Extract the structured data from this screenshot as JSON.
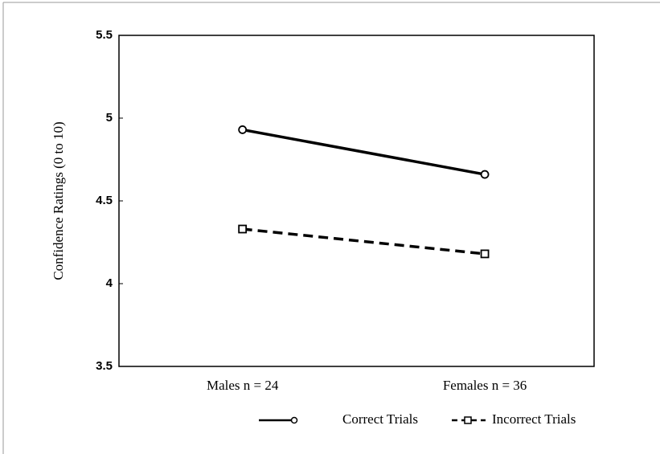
{
  "chart_data": {
    "type": "line",
    "ylabel": "Confidence Ratings (0 to 10)",
    "categories": [
      "Males n = 24",
      "Females n = 36"
    ],
    "series": [
      {
        "name": "Correct Trials",
        "color": "#000000",
        "values": [
          4.93,
          4.66
        ],
        "dash": false,
        "marker": "circle"
      },
      {
        "name": "Incorrect Trials",
        "color": "#000000",
        "values": [
          4.33,
          4.18
        ],
        "dash": true,
        "marker": "square"
      }
    ],
    "ylim": [
      3.5,
      5.5
    ],
    "yticks": [
      3.5,
      4,
      4.5,
      5,
      5.5
    ],
    "grid": false
  }
}
